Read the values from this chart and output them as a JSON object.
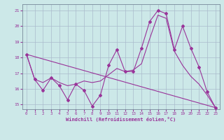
{
  "background_color": "#cce8e8",
  "grid_color": "#aabbcc",
  "line_color": "#993399",
  "xlim": [
    -0.5,
    23.5
  ],
  "ylim": [
    14.7,
    21.4
  ],
  "yticks": [
    15,
    16,
    17,
    18,
    19,
    20,
    21
  ],
  "xticks": [
    0,
    1,
    2,
    3,
    4,
    5,
    6,
    7,
    8,
    9,
    10,
    11,
    12,
    13,
    14,
    15,
    16,
    17,
    18,
    19,
    20,
    21,
    22,
    23
  ],
  "xlabel": "Windchill (Refroidissement éolien,°C)",
  "series": [
    {
      "name": "zigzag_markers",
      "x": [
        0,
        1,
        2,
        3,
        4,
        5,
        6,
        7,
        8,
        9,
        10,
        11,
        12,
        13,
        14,
        15,
        16,
        17,
        18,
        19,
        20,
        21,
        22,
        23
      ],
      "y": [
        18.2,
        16.6,
        15.9,
        16.7,
        16.2,
        15.3,
        16.3,
        15.9,
        14.9,
        15.6,
        17.5,
        18.5,
        17.1,
        17.1,
        18.6,
        20.3,
        21.0,
        20.8,
        18.5,
        20.0,
        18.6,
        17.4,
        15.8,
        14.8
      ],
      "marker": "D",
      "markersize": 2.0,
      "linewidth": 0.8
    },
    {
      "name": "smooth_upper",
      "x": [
        0,
        1,
        2,
        3,
        4,
        5,
        6,
        7,
        8,
        9,
        10,
        11,
        12,
        13,
        14,
        15,
        16,
        17,
        18,
        19,
        20,
        21,
        22,
        23
      ],
      "y": [
        18.2,
        16.6,
        16.4,
        16.7,
        16.4,
        16.2,
        16.3,
        16.5,
        16.4,
        16.5,
        16.9,
        17.3,
        17.1,
        17.2,
        17.6,
        19.2,
        20.7,
        20.5,
        18.4,
        17.5,
        16.8,
        16.3,
        15.6,
        14.8
      ],
      "marker": null,
      "markersize": 0,
      "linewidth": 0.8
    },
    {
      "name": "diagonal_baseline",
      "x": [
        0,
        23
      ],
      "y": [
        18.2,
        14.8
      ],
      "marker": null,
      "markersize": 0,
      "linewidth": 0.8
    }
  ]
}
